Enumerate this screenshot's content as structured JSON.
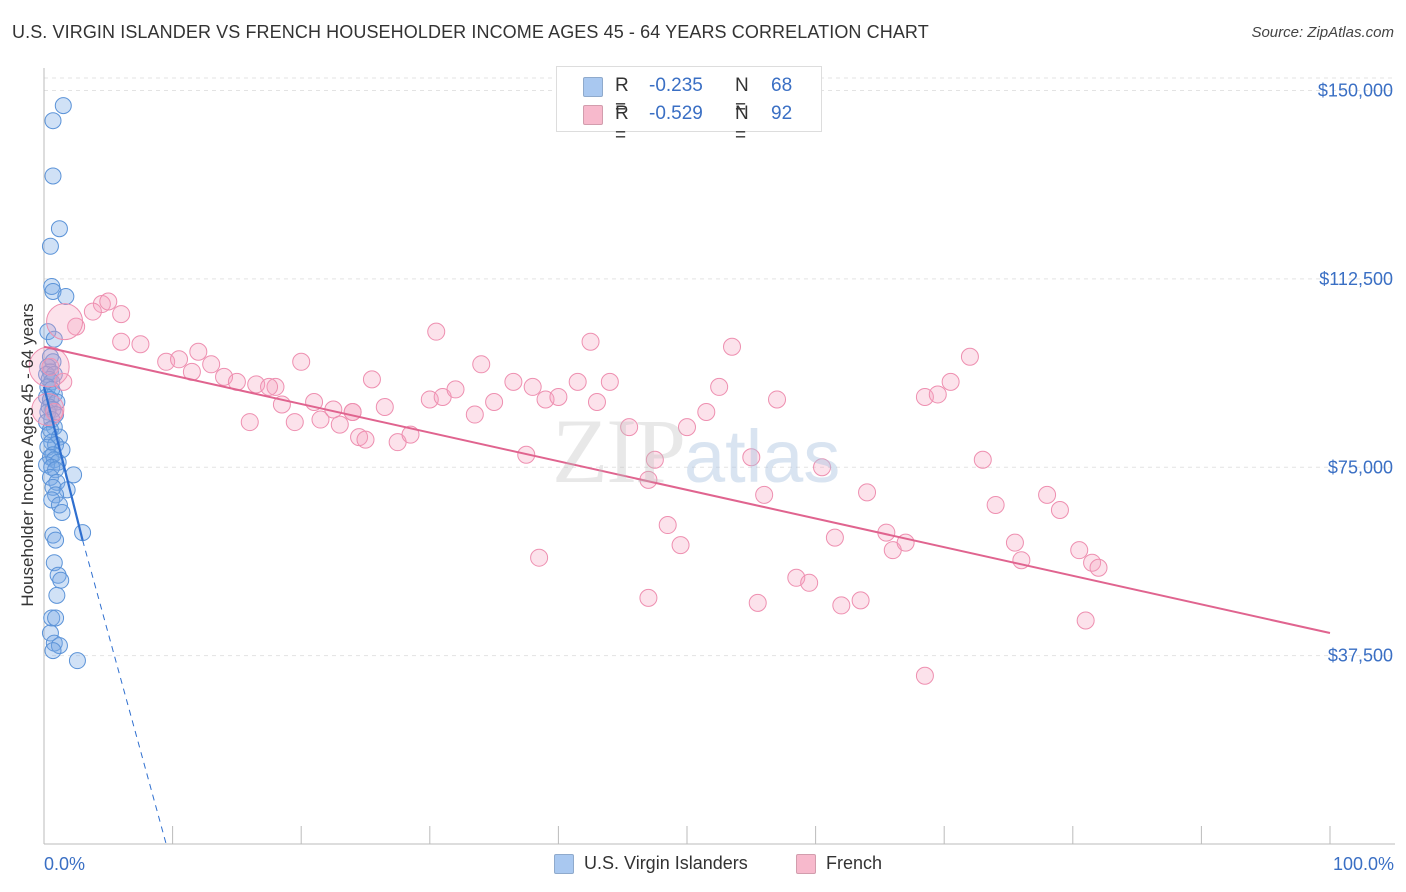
{
  "header": {
    "title": "U.S. VIRGIN ISLANDER VS FRENCH HOUSEHOLDER INCOME AGES 45 - 64 YEARS CORRELATION CHART",
    "source": "Source: ZipAtlas.com"
  },
  "watermark": {
    "zip": "ZIP",
    "atlas": "atlas"
  },
  "stats": [
    {
      "swatch_color": "#a9c8f0",
      "r_label": "R =",
      "r_value": "-0.235",
      "n_label": "N =",
      "n_value": "68"
    },
    {
      "swatch_color": "#f7b9cc",
      "r_label": "R =",
      "r_value": "-0.529",
      "n_label": "N =",
      "n_value": "92"
    }
  ],
  "legend": [
    {
      "label": "U.S. Virgin Islanders",
      "color": "#a9c8f0"
    },
    {
      "label": "French",
      "color": "#f7b9cc"
    }
  ],
  "colors": {
    "blue_fill": "rgba(120,170,230,0.35)",
    "blue_stroke": "#5b93d8",
    "blue_line": "#2f6fcf",
    "pink_fill": "rgba(245,160,190,0.30)",
    "pink_stroke": "#ee8fb0",
    "pink_line": "#e0648f",
    "axis_text": "#3a6fc4",
    "grid": "#e3e3e3"
  },
  "chart_data": {
    "type": "scatter",
    "title": "U.S. VIRGIN ISLANDER VS FRENCH HOUSEHOLDER INCOME AGES 45 - 64 YEARS CORRELATION CHART",
    "xlabel": "",
    "ylabel": "Householder Income Ages 45 - 64 years",
    "xlim": [
      0,
      100
    ],
    "ylim": [
      0,
      152500
    ],
    "x_tick_labels": [
      "0.0%",
      "100.0%"
    ],
    "y_ticks": [
      {
        "value": 37500,
        "label": "$37,500"
      },
      {
        "value": 75000,
        "label": "$75,000"
      },
      {
        "value": 112500,
        "label": "$112,500"
      },
      {
        "value": 150000,
        "label": "$150,000"
      }
    ],
    "series": [
      {
        "name": "U.S. Virgin Islanders",
        "color": "blue",
        "points": [
          [
            1.5,
            147000
          ],
          [
            0.7,
            144000
          ],
          [
            0.7,
            133000
          ],
          [
            1.2,
            122500
          ],
          [
            0.5,
            119000
          ],
          [
            0.6,
            111000
          ],
          [
            0.7,
            110000
          ],
          [
            1.7,
            109000
          ],
          [
            0.3,
            102000
          ],
          [
            0.8,
            100500
          ],
          [
            0.5,
            97000
          ],
          [
            0.7,
            96000
          ],
          [
            0.3,
            95000
          ],
          [
            0.5,
            94000
          ],
          [
            0.2,
            93500
          ],
          [
            0.8,
            93500
          ],
          [
            0.4,
            92500
          ],
          [
            0.6,
            92000
          ],
          [
            0.3,
            91000
          ],
          [
            0.6,
            90500
          ],
          [
            0.8,
            89500
          ],
          [
            0.2,
            89000
          ],
          [
            0.5,
            88500
          ],
          [
            1.0,
            88000
          ],
          [
            0.4,
            87000
          ],
          [
            0.7,
            86500
          ],
          [
            0.3,
            86000
          ],
          [
            0.9,
            85500
          ],
          [
            0.6,
            84500
          ],
          [
            0.2,
            84000
          ],
          [
            0.8,
            83000
          ],
          [
            0.5,
            82500
          ],
          [
            0.4,
            81500
          ],
          [
            1.2,
            81000
          ],
          [
            0.6,
            80000
          ],
          [
            0.9,
            79500
          ],
          [
            0.3,
            79000
          ],
          [
            1.4,
            78500
          ],
          [
            0.7,
            77500
          ],
          [
            0.5,
            77000
          ],
          [
            0.8,
            76500
          ],
          [
            1.1,
            76000
          ],
          [
            0.2,
            75500
          ],
          [
            0.6,
            75000
          ],
          [
            0.9,
            74500
          ],
          [
            2.3,
            73500
          ],
          [
            0.5,
            73000
          ],
          [
            1.0,
            72000
          ],
          [
            0.7,
            71000
          ],
          [
            1.8,
            70500
          ],
          [
            0.9,
            69500
          ],
          [
            0.6,
            68500
          ],
          [
            1.2,
            67500
          ],
          [
            1.4,
            66000
          ],
          [
            3.0,
            62000
          ],
          [
            0.7,
            61500
          ],
          [
            0.9,
            60500
          ],
          [
            0.8,
            56000
          ],
          [
            1.1,
            53500
          ],
          [
            1.3,
            52500
          ],
          [
            1.0,
            49500
          ],
          [
            0.6,
            45000
          ],
          [
            0.9,
            45000
          ],
          [
            0.5,
            42000
          ],
          [
            0.8,
            40000
          ],
          [
            1.2,
            39500
          ],
          [
            0.7,
            38500
          ],
          [
            2.6,
            36500
          ]
        ],
        "trend": {
          "x0": 0.0,
          "y0": 91000,
          "x1": 3.0,
          "y1": 60500
        },
        "trend_extension": {
          "x0": 3.0,
          "y0": 60500,
          "x1": 9.5,
          "y1": 0
        }
      },
      {
        "name": "French",
        "color": "pink",
        "points": [
          [
            0.5,
            95000
          ],
          [
            1.5,
            92000
          ],
          [
            0.8,
            86000
          ],
          [
            4.5,
            107500
          ],
          [
            5.0,
            108000
          ],
          [
            6.0,
            105500
          ],
          [
            3.8,
            106000
          ],
          [
            2.5,
            103000
          ],
          [
            6.0,
            100000
          ],
          [
            7.5,
            99500
          ],
          [
            9.5,
            96000
          ],
          [
            10.5,
            96500
          ],
          [
            12.0,
            98000
          ],
          [
            14.0,
            93000
          ],
          [
            11.5,
            94000
          ],
          [
            13.0,
            95500
          ],
          [
            15.0,
            92000
          ],
          [
            16.5,
            91500
          ],
          [
            18.0,
            91000
          ],
          [
            17.5,
            91000
          ],
          [
            20.0,
            96000
          ],
          [
            21.0,
            88000
          ],
          [
            22.5,
            86500
          ],
          [
            24.0,
            86000
          ],
          [
            25.5,
            92500
          ],
          [
            26.5,
            87000
          ],
          [
            18.5,
            87500
          ],
          [
            16.0,
            84000
          ],
          [
            19.5,
            84000
          ],
          [
            21.5,
            84500
          ],
          [
            23.0,
            83500
          ],
          [
            24.5,
            81000
          ],
          [
            25.0,
            80500
          ],
          [
            27.5,
            80000
          ],
          [
            28.5,
            81500
          ],
          [
            30.0,
            88500
          ],
          [
            31.0,
            89000
          ],
          [
            32.0,
            90500
          ],
          [
            33.5,
            85500
          ],
          [
            34.0,
            95500
          ],
          [
            35.0,
            88000
          ],
          [
            36.5,
            92000
          ],
          [
            37.5,
            77500
          ],
          [
            38.0,
            91000
          ],
          [
            39.0,
            88500
          ],
          [
            40.0,
            89000
          ],
          [
            41.5,
            92000
          ],
          [
            42.5,
            100000
          ],
          [
            43.0,
            88000
          ],
          [
            44.0,
            92000
          ],
          [
            45.5,
            83000
          ],
          [
            47.0,
            72500
          ],
          [
            47.5,
            76500
          ],
          [
            48.5,
            63500
          ],
          [
            49.5,
            59500
          ],
          [
            50.0,
            83000
          ],
          [
            51.5,
            86000
          ],
          [
            52.5,
            91000
          ],
          [
            53.5,
            99000
          ],
          [
            55.0,
            77000
          ],
          [
            56.0,
            69500
          ],
          [
            57.0,
            88500
          ],
          [
            58.5,
            53000
          ],
          [
            59.5,
            52000
          ],
          [
            60.5,
            75000
          ],
          [
            61.5,
            61000
          ],
          [
            62.0,
            47500
          ],
          [
            63.5,
            48500
          ],
          [
            64.0,
            70000
          ],
          [
            65.5,
            62000
          ],
          [
            66.0,
            58500
          ],
          [
            67.0,
            60000
          ],
          [
            68.5,
            89000
          ],
          [
            69.5,
            89500
          ],
          [
            70.5,
            92000
          ],
          [
            72.0,
            97000
          ],
          [
            73.0,
            76500
          ],
          [
            74.0,
            67500
          ],
          [
            75.5,
            60000
          ],
          [
            76.0,
            56500
          ],
          [
            78.0,
            69500
          ],
          [
            79.0,
            66500
          ],
          [
            80.5,
            58500
          ],
          [
            81.5,
            56000
          ],
          [
            82.0,
            55000
          ],
          [
            24.0,
            86000
          ],
          [
            30.5,
            102000
          ],
          [
            38.5,
            57000
          ],
          [
            47.0,
            49000
          ],
          [
            55.5,
            48000
          ],
          [
            68.5,
            33500
          ],
          [
            81.0,
            44500
          ]
        ],
        "trend": {
          "x0": 0.0,
          "y0": 99000,
          "x1": 100.0,
          "y1": 42000
        }
      }
    ]
  }
}
